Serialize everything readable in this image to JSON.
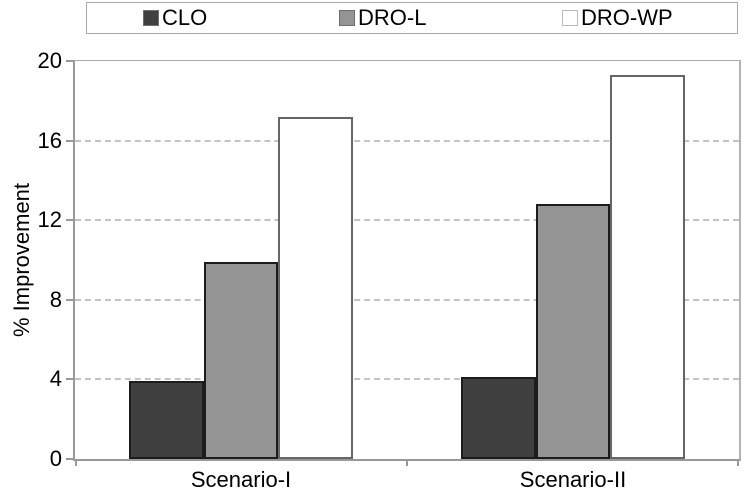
{
  "figure": {
    "background": "#ffffff",
    "axis_color": "#999999",
    "grid_color": "#c3c3c3"
  },
  "legend": {
    "items": [
      {
        "label": "CLO",
        "fill": "#404040",
        "stroke": "#6e6e6e"
      },
      {
        "label": "DRO-L",
        "fill": "#949494",
        "stroke": "#6e6e6e"
      },
      {
        "label": "DRO-WP",
        "fill": "#ffffff",
        "stroke": "#bbbbbb"
      }
    ]
  },
  "chart_data": {
    "type": "bar",
    "title": "",
    "categories": [
      "Scenario-I",
      "Scenario-II"
    ],
    "series": [
      {
        "name": "CLO",
        "values": [
          3.9,
          4.1
        ],
        "fill": "#404040",
        "stroke": "#1c1c1c"
      },
      {
        "name": "DRO-L",
        "values": [
          9.9,
          12.8
        ],
        "fill": "#949494",
        "stroke": "#1c1c1c"
      },
      {
        "name": "DRO-WP",
        "values": [
          17.2,
          19.3
        ],
        "fill": "#ffffff",
        "stroke": "#666666"
      }
    ],
    "xlabel": "",
    "ylabel": "% Improvement",
    "ylim": [
      0,
      20
    ],
    "yticks": [
      0,
      4,
      8,
      12,
      16,
      20
    ],
    "gridlines": [
      4,
      8,
      12,
      16
    ],
    "grid_style": "dashed",
    "legend_position": "top",
    "grid": true
  }
}
